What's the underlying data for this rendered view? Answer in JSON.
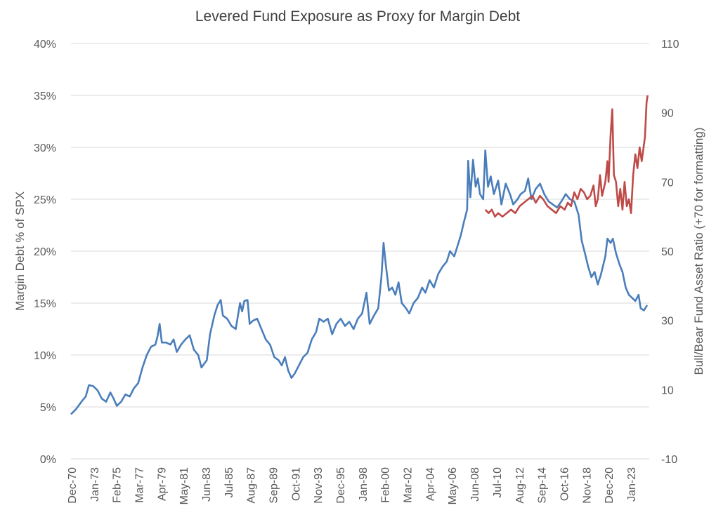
{
  "chart_data": {
    "type": "line",
    "title": "Levered Fund Exposure as Proxy for Margin Debt",
    "ylabel": "Margin Debt % of SPX",
    "y2label": "Bull/Bear Fund Asset Ratio (+70 for formatting)",
    "ylim": [
      0,
      0.4
    ],
    "y2lim": [
      -10,
      110
    ],
    "grid": true,
    "y_ticks": [
      "0%",
      "5%",
      "10%",
      "15%",
      "20%",
      "25%",
      "30%",
      "35%",
      "40%"
    ],
    "y2_ticks": [
      "-10",
      "10",
      "30",
      "50",
      "70",
      "90",
      "110"
    ],
    "x_ticks": [
      "Dec-70",
      "Jan-73",
      "Feb-75",
      "Mar-77",
      "Apr-79",
      "May-81",
      "Jun-83",
      "Jul-85",
      "Aug-87",
      "Sep-89",
      "Oct-91",
      "Nov-93",
      "Dec-95",
      "Jan-98",
      "Feb-00",
      "Mar-02",
      "Apr-04",
      "May-06",
      "Jun-08",
      "Jul-10",
      "Aug-12",
      "Sep-14",
      "Oct-16",
      "Nov-18",
      "Dec-20",
      "Jan-23"
    ],
    "series": [
      {
        "axis": "left",
        "color": "#4a7ebb",
        "points": [
          [
            1970.92,
            0.043
          ],
          [
            1971.4,
            0.048
          ],
          [
            1971.9,
            0.055
          ],
          [
            1972.3,
            0.06
          ],
          [
            1972.6,
            0.071
          ],
          [
            1973.0,
            0.07
          ],
          [
            1973.4,
            0.066
          ],
          [
            1973.8,
            0.058
          ],
          [
            1974.2,
            0.055
          ],
          [
            1974.6,
            0.064
          ],
          [
            1974.9,
            0.058
          ],
          [
            1975.2,
            0.051
          ],
          [
            1975.6,
            0.055
          ],
          [
            1976.0,
            0.062
          ],
          [
            1976.4,
            0.06
          ],
          [
            1976.8,
            0.068
          ],
          [
            1977.2,
            0.073
          ],
          [
            1977.6,
            0.088
          ],
          [
            1978.0,
            0.1
          ],
          [
            1978.4,
            0.108
          ],
          [
            1978.8,
            0.11
          ],
          [
            1979.0,
            0.118
          ],
          [
            1979.2,
            0.13
          ],
          [
            1979.4,
            0.112
          ],
          [
            1979.8,
            0.112
          ],
          [
            1980.2,
            0.11
          ],
          [
            1980.5,
            0.115
          ],
          [
            1980.8,
            0.103
          ],
          [
            1981.2,
            0.11
          ],
          [
            1981.6,
            0.115
          ],
          [
            1982.0,
            0.119
          ],
          [
            1982.4,
            0.105
          ],
          [
            1982.8,
            0.1
          ],
          [
            1983.1,
            0.088
          ],
          [
            1983.6,
            0.095
          ],
          [
            1983.9,
            0.12
          ],
          [
            1984.3,
            0.138
          ],
          [
            1984.6,
            0.148
          ],
          [
            1984.9,
            0.153
          ],
          [
            1985.1,
            0.138
          ],
          [
            1985.5,
            0.135
          ],
          [
            1985.9,
            0.128
          ],
          [
            1986.3,
            0.125
          ],
          [
            1986.7,
            0.15
          ],
          [
            1986.9,
            0.142
          ],
          [
            1987.1,
            0.152
          ],
          [
            1987.4,
            0.153
          ],
          [
            1987.6,
            0.13
          ],
          [
            1987.9,
            0.133
          ],
          [
            1988.3,
            0.135
          ],
          [
            1988.7,
            0.125
          ],
          [
            1989.1,
            0.115
          ],
          [
            1989.5,
            0.11
          ],
          [
            1989.9,
            0.098
          ],
          [
            1990.3,
            0.095
          ],
          [
            1990.6,
            0.09
          ],
          [
            1990.9,
            0.098
          ],
          [
            1991.2,
            0.085
          ],
          [
            1991.5,
            0.078
          ],
          [
            1991.8,
            0.082
          ],
          [
            1992.2,
            0.09
          ],
          [
            1992.6,
            0.098
          ],
          [
            1993.0,
            0.102
          ],
          [
            1993.4,
            0.115
          ],
          [
            1993.8,
            0.122
          ],
          [
            1994.1,
            0.135
          ],
          [
            1994.5,
            0.132
          ],
          [
            1994.9,
            0.135
          ],
          [
            1995.3,
            0.12
          ],
          [
            1995.7,
            0.13
          ],
          [
            1996.1,
            0.135
          ],
          [
            1996.5,
            0.128
          ],
          [
            1996.9,
            0.132
          ],
          [
            1997.3,
            0.125
          ],
          [
            1997.7,
            0.135
          ],
          [
            1998.1,
            0.14
          ],
          [
            1998.5,
            0.16
          ],
          [
            1998.8,
            0.13
          ],
          [
            1999.2,
            0.138
          ],
          [
            1999.6,
            0.145
          ],
          [
            1999.9,
            0.175
          ],
          [
            2000.1,
            0.208
          ],
          [
            2000.3,
            0.188
          ],
          [
            2000.6,
            0.162
          ],
          [
            2000.9,
            0.165
          ],
          [
            2001.2,
            0.158
          ],
          [
            2001.5,
            0.17
          ],
          [
            2001.8,
            0.15
          ],
          [
            2002.2,
            0.145
          ],
          [
            2002.5,
            0.14
          ],
          [
            2002.9,
            0.15
          ],
          [
            2003.3,
            0.155
          ],
          [
            2003.7,
            0.165
          ],
          [
            2004.0,
            0.16
          ],
          [
            2004.4,
            0.172
          ],
          [
            2004.8,
            0.165
          ],
          [
            2005.2,
            0.178
          ],
          [
            2005.6,
            0.185
          ],
          [
            2006.0,
            0.19
          ],
          [
            2006.3,
            0.2
          ],
          [
            2006.7,
            0.195
          ],
          [
            2007.0,
            0.205
          ],
          [
            2007.3,
            0.215
          ],
          [
            2007.6,
            0.228
          ],
          [
            2007.9,
            0.24
          ],
          [
            2008.0,
            0.287
          ],
          [
            2008.2,
            0.252
          ],
          [
            2008.45,
            0.288
          ],
          [
            2008.7,
            0.262
          ],
          [
            2008.9,
            0.27
          ],
          [
            2009.1,
            0.255
          ],
          [
            2009.4,
            0.25
          ],
          [
            2009.6,
            0.297
          ],
          [
            2009.85,
            0.262
          ],
          [
            2010.1,
            0.272
          ],
          [
            2010.4,
            0.255
          ],
          [
            2010.8,
            0.268
          ],
          [
            2011.1,
            0.245
          ],
          [
            2011.5,
            0.265
          ],
          [
            2011.9,
            0.255
          ],
          [
            2012.2,
            0.245
          ],
          [
            2012.6,
            0.25
          ],
          [
            2012.9,
            0.255
          ],
          [
            2013.3,
            0.258
          ],
          [
            2013.6,
            0.27
          ],
          [
            2013.9,
            0.25
          ],
          [
            2014.3,
            0.26
          ],
          [
            2014.7,
            0.265
          ],
          [
            2015.1,
            0.255
          ],
          [
            2015.5,
            0.248
          ],
          [
            2015.9,
            0.245
          ],
          [
            2016.3,
            0.242
          ],
          [
            2016.7,
            0.248
          ],
          [
            2017.1,
            0.255
          ],
          [
            2017.5,
            0.25
          ],
          [
            2017.9,
            0.248
          ],
          [
            2018.3,
            0.235
          ],
          [
            2018.6,
            0.21
          ],
          [
            2018.9,
            0.198
          ],
          [
            2019.2,
            0.185
          ],
          [
            2019.5,
            0.175
          ],
          [
            2019.8,
            0.18
          ],
          [
            2020.1,
            0.168
          ],
          [
            2020.4,
            0.178
          ],
          [
            2020.8,
            0.195
          ],
          [
            2021.0,
            0.212
          ],
          [
            2021.3,
            0.208
          ],
          [
            2021.5,
            0.212
          ],
          [
            2021.8,
            0.198
          ],
          [
            2022.1,
            0.188
          ],
          [
            2022.4,
            0.18
          ],
          [
            2022.7,
            0.165
          ],
          [
            2023.0,
            0.158
          ],
          [
            2023.3,
            0.155
          ],
          [
            2023.6,
            0.152
          ],
          [
            2023.9,
            0.158
          ],
          [
            2024.1,
            0.145
          ],
          [
            2024.4,
            0.143
          ],
          [
            2024.7,
            0.148
          ]
        ]
      },
      {
        "axis": "right",
        "color": "#be4b48",
        "points": [
          [
            2009.6,
            62
          ],
          [
            2009.9,
            61
          ],
          [
            2010.2,
            62
          ],
          [
            2010.5,
            60
          ],
          [
            2010.8,
            61
          ],
          [
            2011.2,
            60
          ],
          [
            2011.6,
            61
          ],
          [
            2012.0,
            62
          ],
          [
            2012.4,
            61
          ],
          [
            2012.8,
            63
          ],
          [
            2013.2,
            64
          ],
          [
            2013.6,
            65
          ],
          [
            2014.0,
            66
          ],
          [
            2014.3,
            64
          ],
          [
            2014.7,
            66
          ],
          [
            2015.0,
            65
          ],
          [
            2015.4,
            63
          ],
          [
            2015.8,
            62
          ],
          [
            2016.2,
            61
          ],
          [
            2016.6,
            63
          ],
          [
            2017.0,
            62
          ],
          [
            2017.3,
            64
          ],
          [
            2017.6,
            63
          ],
          [
            2017.9,
            67
          ],
          [
            2018.2,
            65
          ],
          [
            2018.5,
            68
          ],
          [
            2018.8,
            67
          ],
          [
            2019.1,
            65
          ],
          [
            2019.4,
            66
          ],
          [
            2019.7,
            69
          ],
          [
            2019.9,
            63
          ],
          [
            2020.1,
            65
          ],
          [
            2020.3,
            72
          ],
          [
            2020.5,
            66
          ],
          [
            2020.8,
            70
          ],
          [
            2021.0,
            76
          ],
          [
            2021.1,
            70
          ],
          [
            2021.3,
            84
          ],
          [
            2021.45,
            91
          ],
          [
            2021.6,
            72
          ],
          [
            2021.8,
            70
          ],
          [
            2022.0,
            63
          ],
          [
            2022.2,
            68
          ],
          [
            2022.4,
            62
          ],
          [
            2022.6,
            70
          ],
          [
            2022.8,
            63
          ],
          [
            2023.0,
            65
          ],
          [
            2023.2,
            61
          ],
          [
            2023.4,
            72
          ],
          [
            2023.6,
            78
          ],
          [
            2023.8,
            74
          ],
          [
            2024.0,
            80
          ],
          [
            2024.2,
            76
          ],
          [
            2024.5,
            83
          ],
          [
            2024.65,
            93
          ],
          [
            2024.75,
            95
          ]
        ]
      }
    ]
  }
}
